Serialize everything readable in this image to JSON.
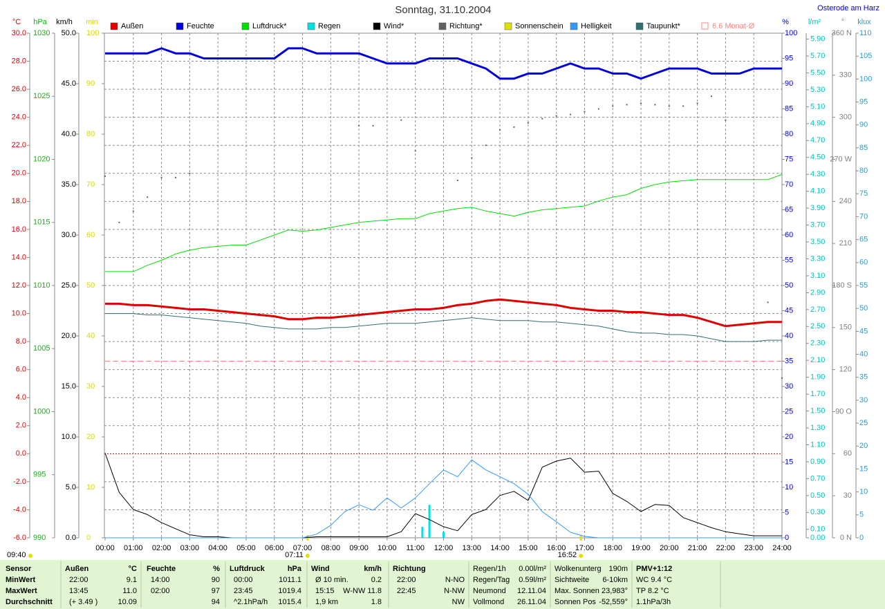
{
  "chart_data": {
    "type": "line",
    "title": "Sonntag, 31.10.2004",
    "location": "Osterode am Harz",
    "xlim": [
      0,
      24
    ],
    "xticks": [
      {
        "value": 0,
        "label": "00:00"
      },
      {
        "value": 1,
        "label": "01:00"
      },
      {
        "value": 2,
        "label": "02:00"
      },
      {
        "value": 3,
        "label": "03:00"
      },
      {
        "value": 4,
        "label": "04:00"
      },
      {
        "value": 5,
        "label": "05:00"
      },
      {
        "value": 6,
        "label": "06:00"
      },
      {
        "value": 7,
        "label": "07:00"
      },
      {
        "value": 8,
        "label": "08:00"
      },
      {
        "value": 9,
        "label": "09:00"
      },
      {
        "value": 10,
        "label": "10:00"
      },
      {
        "value": 11,
        "label": "11:00"
      },
      {
        "value": 12,
        "label": "12:00"
      },
      {
        "value": 13,
        "label": "13:00"
      },
      {
        "value": 14,
        "label": "14:00"
      },
      {
        "value": 15,
        "label": "15:00"
      },
      {
        "value": 16,
        "label": "16:00"
      },
      {
        "value": 17,
        "label": "17:00"
      },
      {
        "value": 18,
        "label": "18:00"
      },
      {
        "value": 19,
        "label": "19:00"
      },
      {
        "value": 20,
        "label": "20:00"
      },
      {
        "value": 21,
        "label": "21:00"
      },
      {
        "value": 22,
        "label": "22:00"
      },
      {
        "value": 23,
        "label": "23:00"
      },
      {
        "value": 24,
        "label": "24:00"
      }
    ],
    "grid": true,
    "timestamp": "09:40",
    "sun": [
      {
        "value": 7.18,
        "label": "07:11"
      },
      {
        "value": 16.87,
        "label": "16:52"
      }
    ],
    "axes": {
      "temp": {
        "title": "°C",
        "color": "#e00000",
        "lim": [
          -6,
          30
        ],
        "ticks": [
          {
            "value": -6,
            "label": "-6.0"
          },
          {
            "value": -4,
            "label": "-4.0"
          },
          {
            "value": -2,
            "label": "-2.0"
          },
          {
            "value": 0,
            "label": "0.0"
          },
          {
            "value": 2,
            "label": "2.0"
          },
          {
            "value": 4,
            "label": "4.0"
          },
          {
            "value": 6,
            "label": "6.0"
          },
          {
            "value": 8,
            "label": "8.0"
          },
          {
            "value": 10,
            "label": "10.0"
          },
          {
            "value": 12,
            "label": "12.0"
          },
          {
            "value": 14,
            "label": "14.0"
          },
          {
            "value": 16,
            "label": "16.0"
          },
          {
            "value": 18,
            "label": "18.0"
          },
          {
            "value": 20,
            "label": "20.0"
          },
          {
            "value": 22,
            "label": "22.0"
          },
          {
            "value": 24,
            "label": "24.0"
          },
          {
            "value": 26,
            "label": "26.0"
          },
          {
            "value": 28,
            "label": "28.0"
          },
          {
            "value": 30,
            "label": "30.0"
          }
        ]
      },
      "press": {
        "title": "hPa",
        "color": "#00c000",
        "lim": [
          990,
          1030
        ],
        "ticks": [
          990,
          995,
          1000,
          1005,
          1010,
          1015,
          1020,
          1025,
          1030
        ]
      },
      "wind": {
        "title": "km/h",
        "color": "#000000",
        "lim": [
          0,
          50
        ],
        "ticks": [
          {
            "value": 0,
            "label": "0.0"
          },
          {
            "value": 5,
            "label": "5.0"
          },
          {
            "value": 10,
            "label": "10.0"
          },
          {
            "value": 15,
            "label": "15.0"
          },
          {
            "value": 20,
            "label": "20.0"
          },
          {
            "value": 25,
            "label": "25.0"
          },
          {
            "value": 30,
            "label": "30.0"
          },
          {
            "value": 35,
            "label": "35.0"
          },
          {
            "value": 40,
            "label": "40.0"
          },
          {
            "value": 45,
            "label": "45.0"
          },
          {
            "value": 50,
            "label": "50.0"
          }
        ]
      },
      "min": {
        "title": "min",
        "color": "#d8d800",
        "lim": [
          0,
          100
        ],
        "ticks": [
          0,
          10,
          20,
          30,
          40,
          50,
          60,
          70,
          80,
          90,
          100
        ]
      },
      "hum": {
        "title": "%",
        "color": "#0000e0",
        "lim": [
          0,
          100
        ],
        "ticks": [
          0,
          5,
          10,
          15,
          20,
          25,
          30,
          35,
          40,
          45,
          50,
          55,
          60,
          65,
          70,
          75,
          80,
          85,
          90,
          95,
          100
        ]
      },
      "rain": {
        "title": "l/m²",
        "color": "#00c0c0",
        "lim": [
          0,
          5.97
        ],
        "ticks": [
          {
            "value": 0,
            "label": "0.00"
          },
          {
            "value": 0.1,
            "label": "0.10"
          },
          {
            "value": 0.3,
            "label": "0.30"
          },
          {
            "value": 0.5,
            "label": "0.50"
          },
          {
            "value": 0.7,
            "label": "0.70"
          },
          {
            "value": 0.9,
            "label": "0.90"
          },
          {
            "value": 1.1,
            "label": "1.10"
          },
          {
            "value": 1.3,
            "label": "1.30"
          },
          {
            "value": 1.5,
            "label": "1.50"
          },
          {
            "value": 1.7,
            "label": "1.70"
          },
          {
            "value": 1.9,
            "label": "1.90"
          },
          {
            "value": 2.1,
            "label": "2.10"
          },
          {
            "value": 2.3,
            "label": "2.30"
          },
          {
            "value": 2.5,
            "label": "2.50"
          },
          {
            "value": 2.7,
            "label": "2.70"
          },
          {
            "value": 2.9,
            "label": "2.90"
          },
          {
            "value": 3.1,
            "label": "3.10"
          },
          {
            "value": 3.3,
            "label": "3.30"
          },
          {
            "value": 3.5,
            "label": "3.50"
          },
          {
            "value": 3.7,
            "label": "3.70"
          },
          {
            "value": 3.9,
            "label": "3.90"
          },
          {
            "value": 4.1,
            "label": "4.10"
          },
          {
            "value": 4.3,
            "label": "4.30"
          },
          {
            "value": 4.5,
            "label": "4.50"
          },
          {
            "value": 4.7,
            "label": "4.70"
          },
          {
            "value": 4.9,
            "label": "4.90"
          },
          {
            "value": 5.1,
            "label": "5.10"
          },
          {
            "value": 5.3,
            "label": "5.30"
          },
          {
            "value": 5.5,
            "label": "5.50"
          },
          {
            "value": 5.7,
            "label": "5.70"
          },
          {
            "value": 5.9,
            "label": "5.90"
          }
        ]
      },
      "dir": {
        "title": "°",
        "color": "#808080",
        "lim": [
          0,
          360
        ],
        "ticks": [
          {
            "value": 0,
            "label": "0 N"
          },
          30,
          60,
          {
            "value": 90,
            "label": "90 O"
          },
          120,
          150,
          {
            "value": 180,
            "label": "180 S"
          },
          210,
          240,
          {
            "value": 270,
            "label": "270 W"
          },
          300,
          330,
          {
            "value": 360,
            "label": "360 N"
          }
        ]
      },
      "lux": {
        "title": "klux",
        "color": "#3399cc",
        "lim": [
          0,
          110
        ],
        "ticks": [
          0,
          5,
          10,
          15,
          20,
          25,
          30,
          35,
          40,
          45,
          50,
          55,
          60,
          65,
          70,
          75,
          80,
          85,
          90,
          95,
          100,
          105,
          110
        ]
      }
    },
    "x": [
      0,
      0.5,
      1,
      1.5,
      2,
      2.5,
      3,
      3.5,
      4,
      4.5,
      5,
      5.5,
      6,
      6.5,
      7,
      7.5,
      8,
      8.5,
      9,
      9.5,
      10,
      10.5,
      11,
      11.5,
      12,
      12.5,
      13,
      13.5,
      14,
      14.5,
      15,
      15.5,
      16,
      16.5,
      17,
      17.5,
      18,
      18.5,
      19,
      19.5,
      20,
      20.5,
      21,
      21.5,
      22,
      22.5,
      23,
      23.5,
      24
    ],
    "series": [
      {
        "name": "Außen",
        "color": "#e00000",
        "axis": "temp",
        "kind": "line",
        "values": [
          10.7,
          10.7,
          10.6,
          10.6,
          10.5,
          10.4,
          10.3,
          10.3,
          10.2,
          10.1,
          10.0,
          9.9,
          9.8,
          9.6,
          9.6,
          9.7,
          9.7,
          9.8,
          9.9,
          10.0,
          10.1,
          10.2,
          10.3,
          10.3,
          10.4,
          10.6,
          10.7,
          10.9,
          11.0,
          10.9,
          10.8,
          10.7,
          10.6,
          10.4,
          10.3,
          10.2,
          10.2,
          10.1,
          10.1,
          10.0,
          9.9,
          9.9,
          9.7,
          9.4,
          9.1,
          9.2,
          9.3,
          9.4,
          9.4
        ]
      },
      {
        "name": "Feuchte",
        "color": "#0000e0",
        "axis": "hum",
        "kind": "line",
        "values": [
          96,
          96,
          96,
          96,
          97,
          96,
          96,
          95,
          95,
          95,
          95,
          95,
          95,
          97,
          97,
          96,
          96,
          96,
          96,
          95,
          94,
          94,
          94,
          95,
          95,
          95,
          94,
          93,
          91,
          91,
          92,
          92,
          93,
          94,
          93,
          93,
          92,
          92,
          91,
          92,
          93,
          93,
          93,
          92,
          92,
          92,
          93,
          93,
          93
        ]
      },
      {
        "name": "Luftdruck*",
        "color": "#00e000",
        "axis": "press",
        "kind": "line",
        "values": [
          1011.1,
          1011.1,
          1011.1,
          1011.6,
          1012.0,
          1012.5,
          1012.8,
          1013.0,
          1013.1,
          1013.2,
          1013.2,
          1013.6,
          1014.0,
          1014.4,
          1014.3,
          1014.4,
          1014.6,
          1014.8,
          1015.0,
          1015.1,
          1015.2,
          1015.3,
          1015.3,
          1015.7,
          1015.9,
          1016.1,
          1016.2,
          1015.9,
          1015.7,
          1015.5,
          1015.8,
          1016.0,
          1016.1,
          1016.2,
          1016.3,
          1016.7,
          1017.0,
          1017.2,
          1017.7,
          1018.0,
          1018.2,
          1018.3,
          1018.4,
          1018.4,
          1018.4,
          1018.4,
          1018.4,
          1018.4,
          1018.8
        ]
      },
      {
        "name": "Regen",
        "color": "#00e0e0",
        "axis": "rain",
        "kind": "bar",
        "x": [
          11.25,
          11.5,
          12.0
        ],
        "values": [
          0.13,
          0.39,
          0.07
        ]
      },
      {
        "name": "Wind*",
        "color": "#000000",
        "axis": "wind",
        "kind": "line",
        "values": [
          8.4,
          4.5,
          2.8,
          2.3,
          1.5,
          0.9,
          0.3,
          0.1,
          0.1,
          0.0,
          0.0,
          0.0,
          0.0,
          0.0,
          0.0,
          0.1,
          0.1,
          0.1,
          0.1,
          0.1,
          0.1,
          0.6,
          2.4,
          1.8,
          1.1,
          0.7,
          2.3,
          2.8,
          4.2,
          4.6,
          3.7,
          7.0,
          7.6,
          7.9,
          6.5,
          6.6,
          4.4,
          3.6,
          2.6,
          3.3,
          3.2,
          2.0,
          1.5,
          1.0,
          0.6,
          0.4,
          0.2,
          0.2,
          0.2
        ]
      },
      {
        "name": "Richtung*",
        "color": "#606060",
        "axis": "dir",
        "kind": "dots",
        "values": [
          258,
          225,
          233,
          243,
          257,
          257,
          260,
          null,
          null,
          null,
          null,
          null,
          null,
          null,
          null,
          null,
          null,
          null,
          294,
          294,
          null,
          298,
          276,
          null,
          null,
          255,
          271,
          280,
          291,
          293,
          296,
          299,
          301,
          302,
          304,
          306,
          308,
          309,
          310,
          309,
          308,
          308,
          310,
          315,
          298,
          null,
          null,
          168,
          114
        ]
      },
      {
        "name": "Sonnenschein",
        "color": "#e0e000",
        "axis": "min",
        "kind": "none"
      },
      {
        "name": "Helligkeit",
        "color": "#3399ff",
        "axis": "lux",
        "kind": "line",
        "values": [
          0,
          0,
          0,
          0,
          0,
          0,
          0,
          0,
          0,
          0,
          0,
          0,
          0,
          0,
          0,
          0.8,
          2.7,
          5.7,
          7.2,
          6.0,
          8.7,
          6.5,
          8.7,
          11.8,
          14.8,
          13.3,
          17.0,
          14.8,
          13.3,
          11.8,
          9.5,
          5.7,
          3.5,
          1.2,
          0.3,
          0,
          0,
          0,
          0,
          0,
          0,
          0,
          0,
          0,
          0,
          0,
          0,
          0,
          0
        ]
      },
      {
        "name": "Taupunkt*",
        "color": "#2f6f6f",
        "axis": "temp",
        "kind": "line",
        "values": [
          10.0,
          10.0,
          10.0,
          9.9,
          9.9,
          9.8,
          9.7,
          9.6,
          9.5,
          9.4,
          9.3,
          9.1,
          9.0,
          8.9,
          8.9,
          8.9,
          9.0,
          9.0,
          9.1,
          9.2,
          9.3,
          9.3,
          9.3,
          9.4,
          9.5,
          9.6,
          9.7,
          9.6,
          9.5,
          9.5,
          9.5,
          9.4,
          9.4,
          9.3,
          9.2,
          9.1,
          8.9,
          8.7,
          8.6,
          8.6,
          8.5,
          8.5,
          8.4,
          8.2,
          8.0,
          8.0,
          8.0,
          8.1,
          8.1
        ]
      },
      {
        "name": "6.6 Monat-Ø",
        "color": "#ff8080",
        "axis": "temp",
        "kind": "hline",
        "value": 6.6
      }
    ]
  },
  "stats": {
    "row_labels": [
      "Sensor",
      "MinWert",
      "MaxWert",
      "Durchschnitt"
    ],
    "blocks": [
      {
        "title": "Außen",
        "unit": "°C",
        "rows": [
          [
            "22:00",
            "9.1"
          ],
          [
            "13:45",
            "11.0"
          ],
          [
            "(+ 3.49 )",
            "10.09"
          ]
        ]
      },
      {
        "title": "Feuchte",
        "unit": "%",
        "rows": [
          [
            "14:00",
            "90"
          ],
          [
            "02:00",
            "97"
          ],
          [
            "94"
          ]
        ]
      },
      {
        "title": "Luftdruck",
        "unit": "hPa",
        "rows": [
          [
            "00:00",
            "1011.1"
          ],
          [
            "23:45",
            "1019.4"
          ],
          [
            "^2.1hPa/h",
            "1015.4"
          ]
        ]
      },
      {
        "title": "Wind",
        "unit": "km/h",
        "rows": [
          [
            "Ø 10 min.",
            "0.2"
          ],
          [
            "15:15",
            "W-NW 11.8"
          ],
          [
            "1,9 km",
            "1.8"
          ]
        ]
      },
      {
        "title": "Richtung",
        "rows": [
          [
            "22:00",
            "N-NO"
          ],
          [
            "22:45",
            "N-NW"
          ],
          [
            "NW"
          ]
        ]
      }
    ],
    "info": [
      [
        [
          "Regen/1h",
          "0.00l/m²"
        ],
        [
          "Regen/Tag",
          "0.59l/m²"
        ],
        [
          "Neumond",
          "12.11.04"
        ],
        [
          "Vollmond",
          "26.11.04"
        ]
      ],
      [
        [
          "Wolkenunterg",
          "190m"
        ],
        [
          "Sichtweite",
          "6-10km"
        ],
        [
          "Max. Sonnen",
          "23,983°"
        ],
        [
          "Sonnen Pos",
          "-52,559°"
        ]
      ],
      [
        [
          "PMV+1:12"
        ],
        [
          "WC 9.4 °C"
        ],
        [
          "TP 8.2 °C"
        ],
        [
          "1.1hPa/3h"
        ]
      ]
    ]
  }
}
